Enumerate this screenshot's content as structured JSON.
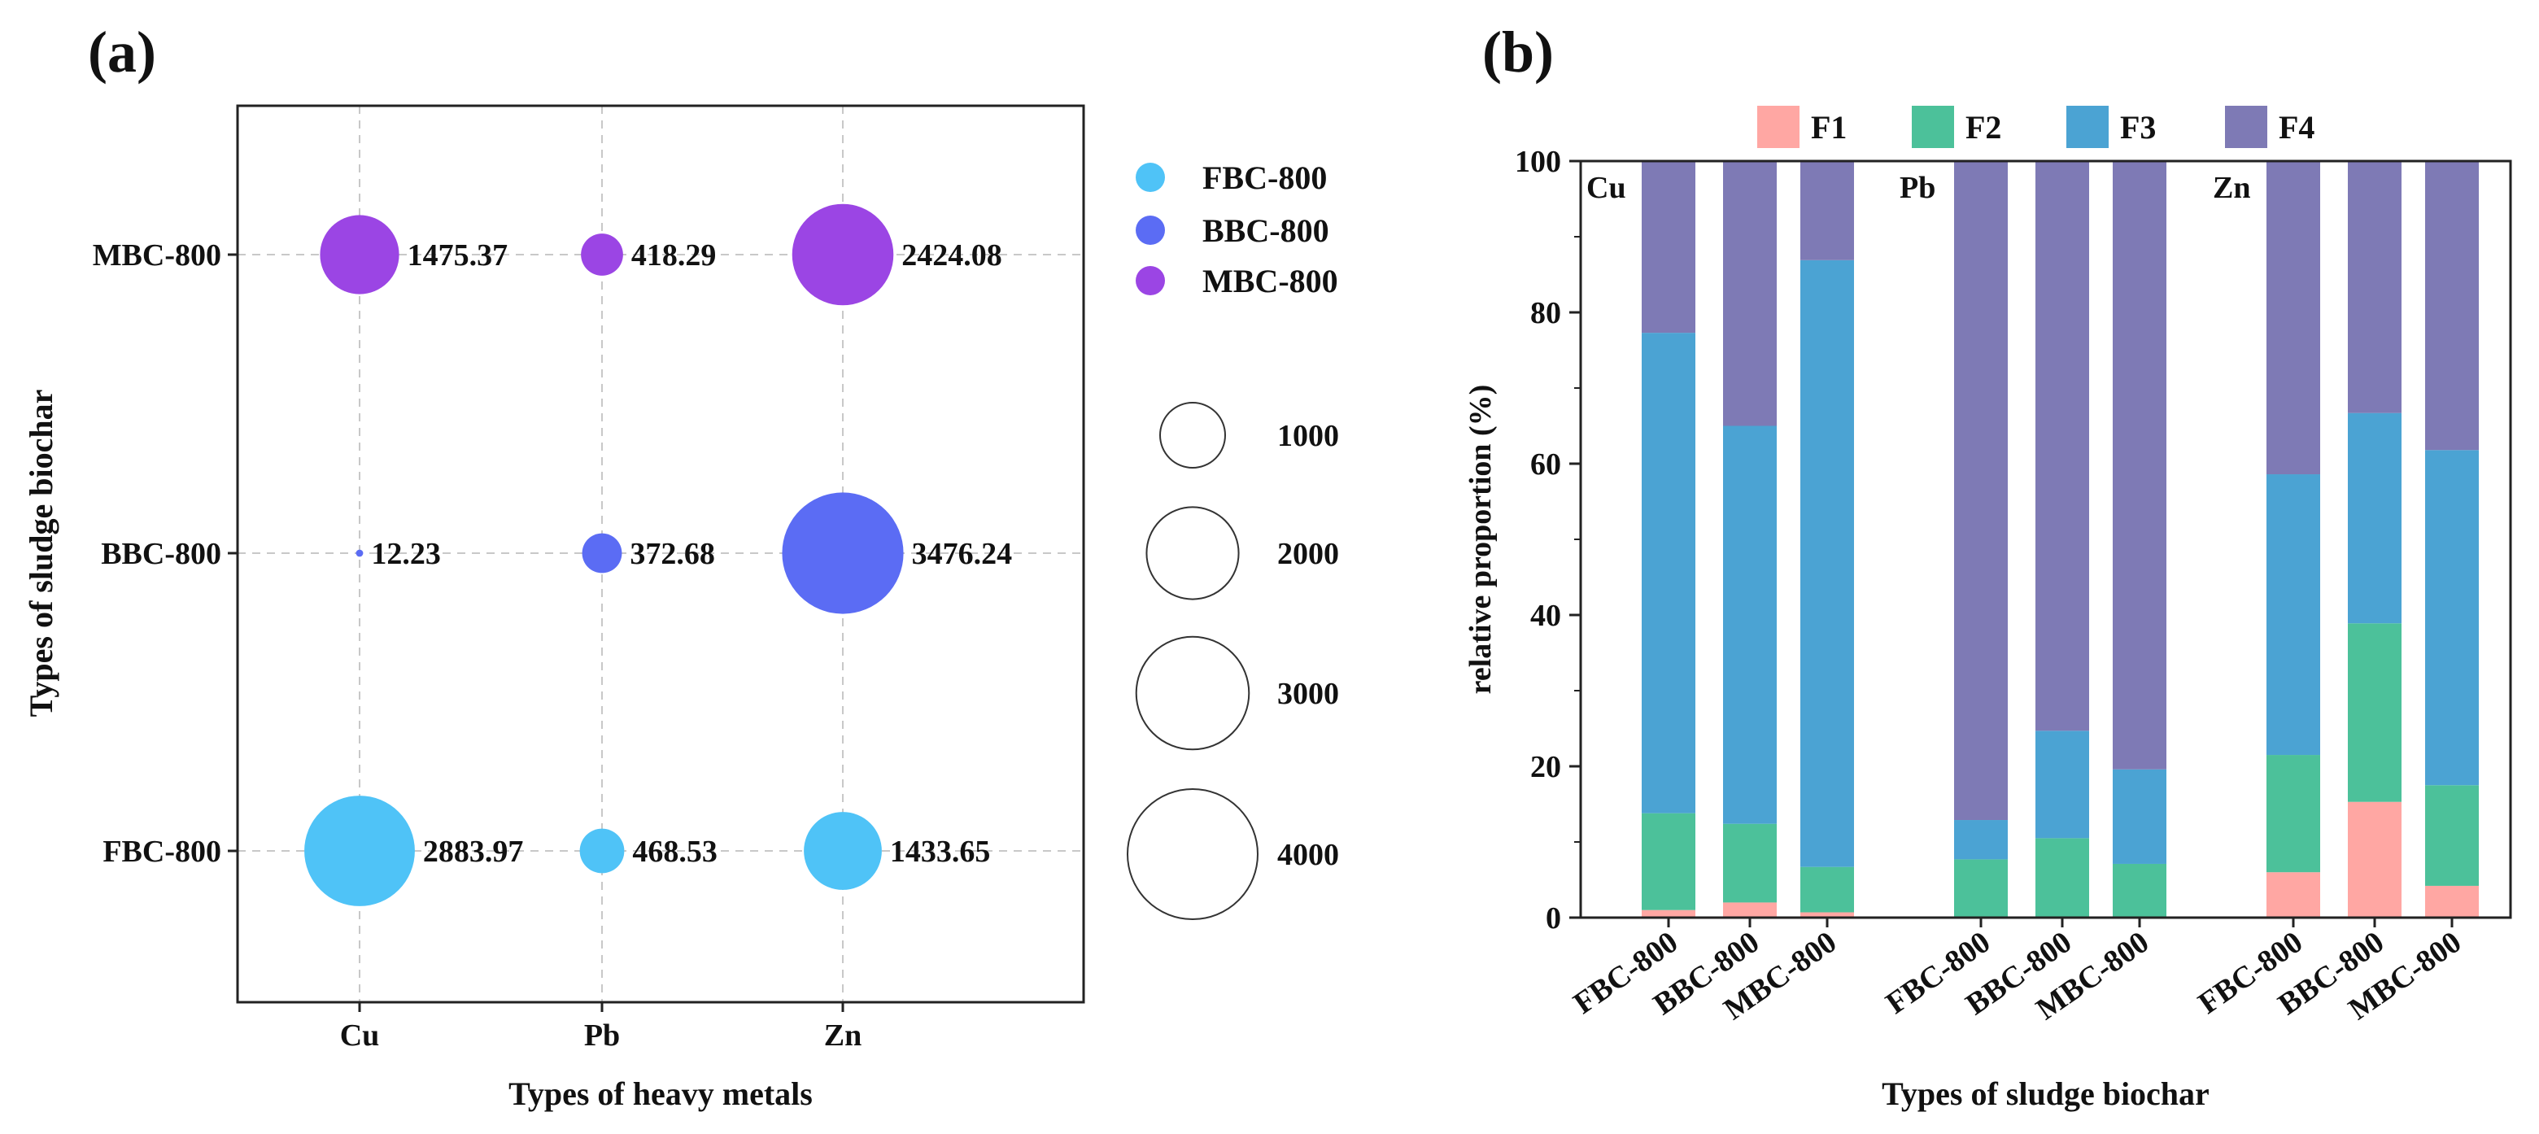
{
  "chart_data": [
    {
      "panel_label": "(a)",
      "type": "scatter",
      "subtype": "bubble",
      "title": "",
      "xlabel": "Types of heavy metals",
      "ylabel": "Types of sludge biochar",
      "categories_x": [
        "Cu",
        "Pb",
        "Zn"
      ],
      "categories_y": [
        "FBC-800",
        "BBC-800",
        "MBC-800"
      ],
      "grid": true,
      "legend_position": "right",
      "series": [
        {
          "name": "FBC-800",
          "color": "#4FC3F7",
          "values": [
            2883.97,
            468.53,
            1433.65
          ],
          "labels": [
            "2883.97",
            "468.53",
            "1433.65"
          ]
        },
        {
          "name": "BBC-800",
          "color": "#5B6CF4",
          "values": [
            12.23,
            372.68,
            3476.24
          ],
          "labels": [
            "12.23",
            "372.68",
            "3476.24"
          ]
        },
        {
          "name": "MBC-800",
          "color": "#9B45E4",
          "values": [
            1475.37,
            418.29,
            2424.08
          ],
          "labels": [
            "1475.37",
            "418.29",
            "2424.08"
          ]
        }
      ],
      "size_legend": {
        "values": [
          1000,
          2000,
          3000,
          4000
        ],
        "labels": [
          "1000",
          "2000",
          "3000",
          "4000"
        ]
      }
    },
    {
      "panel_label": "(b)",
      "type": "bar",
      "subtype": "stacked",
      "title": "",
      "xlabel": "Types of sludge biochar",
      "ylabel": "relative proportion (%)",
      "ylim": [
        0,
        100
      ],
      "yticks": [
        "0",
        "20",
        "40",
        "60",
        "80",
        "100"
      ],
      "grid": false,
      "legend_position": "top",
      "groups": [
        "Cu",
        "Pb",
        "Zn"
      ],
      "categories": [
        "FBC-800",
        "BBC-800",
        "MBC-800",
        "FBC-800",
        "BBC-800",
        "MBC-800",
        "FBC-800",
        "BBC-800",
        "MBC-800"
      ],
      "series": [
        {
          "name": "F1",
          "color": "#FFA7A3",
          "values": [
            1.0,
            2.0,
            0.7,
            0,
            0,
            0,
            6.0,
            15.3,
            4.2
          ]
        },
        {
          "name": "F2",
          "color": "#4CC19A",
          "values": [
            12.8,
            10.4,
            6.0,
            7.7,
            10.5,
            7.1,
            15.5,
            23.6,
            13.3
          ]
        },
        {
          "name": "F3",
          "color": "#4BA3D3",
          "values": [
            63.5,
            52.6,
            80.2,
            5.2,
            14.2,
            12.5,
            37.1,
            27.8,
            44.3
          ]
        },
        {
          "name": "F4",
          "color": "#7E7AB5",
          "values": [
            22.7,
            35.0,
            13.1,
            87.1,
            75.3,
            80.4,
            41.4,
            33.3,
            38.2
          ]
        }
      ]
    }
  ]
}
